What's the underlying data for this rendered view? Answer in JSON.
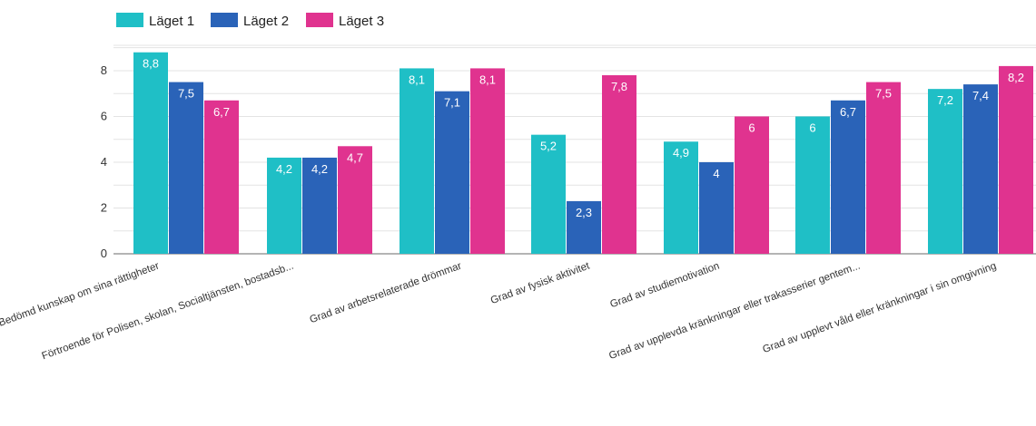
{
  "chart_data": {
    "type": "bar",
    "categories": [
      "Bedömd kunskap om sina rättigheter",
      "Förtroende för Polisen, skolan, Socialtjänsten, bostadsb...",
      "Grad av arbetsrelaterade drömmar",
      "Grad av fysisk aktivitet",
      "Grad av studiemotivation",
      "Grad av upplevda kränkningar eller trakasserier gentem...",
      "Grad av upplevt våld eller kränkningar i sin omgivning"
    ],
    "series": [
      {
        "name": "Läget 1",
        "color": "#1fbfc6",
        "values": [
          8.8,
          4.2,
          8.1,
          5.2,
          4.9,
          6,
          7.2
        ],
        "labels": [
          "8,8",
          "4,2",
          "8,1",
          "5,2",
          "4,9",
          "6",
          "7,2"
        ]
      },
      {
        "name": "Läget 2",
        "color": "#2a63b8",
        "values": [
          7.5,
          4.2,
          7.1,
          2.3,
          4,
          6.7,
          7.4
        ],
        "labels": [
          "7,5",
          "4,2",
          "7,1",
          "2,3",
          "4",
          "6,7",
          "7,4"
        ]
      },
      {
        "name": "Läget 3",
        "color": "#e0338f",
        "values": [
          6.7,
          4.7,
          8.1,
          7.8,
          6,
          7.5,
          8.2
        ],
        "labels": [
          "6,7",
          "4,7",
          "8,1",
          "7,8",
          "6",
          "7,5",
          "8,2"
        ]
      }
    ],
    "yticks": [
      "0",
      "2",
      "4",
      "6",
      "8"
    ],
    "ylim": [
      0,
      9.7
    ],
    "grid": true,
    "legend_position": "top-left"
  }
}
